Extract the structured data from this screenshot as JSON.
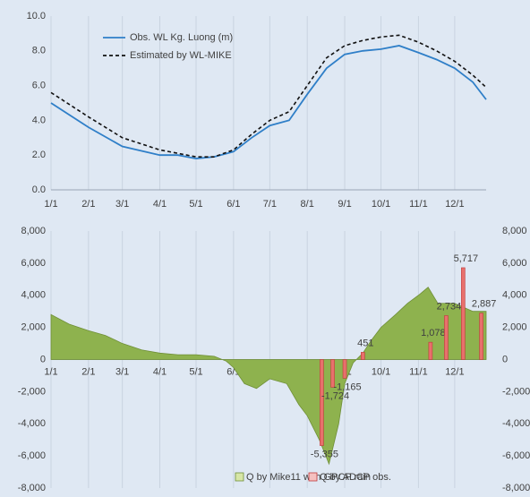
{
  "chart_data": [
    {
      "type": "line",
      "xlim": [
        0,
        360
      ],
      "xticks": [
        {
          "value": 0,
          "label": "1/1"
        },
        {
          "value": 31,
          "label": "2/1"
        },
        {
          "value": 59,
          "label": "3/1"
        },
        {
          "value": 90,
          "label": "4/1"
        },
        {
          "value": 120,
          "label": "5/1"
        },
        {
          "value": 151,
          "label": "6/1"
        },
        {
          "value": 181,
          "label": "7/1"
        },
        {
          "value": 212,
          "label": "8/1"
        },
        {
          "value": 243,
          "label": "9/1"
        },
        {
          "value": 273,
          "label": "10/1"
        },
        {
          "value": 304,
          "label": "11/1"
        },
        {
          "value": 334,
          "label": "12/1"
        }
      ],
      "ylim": [
        0,
        10
      ],
      "yticks": [
        {
          "value": 0,
          "label": "0.0"
        },
        {
          "value": 2,
          "label": "2.0"
        },
        {
          "value": 4,
          "label": "4.0"
        },
        {
          "value": 6,
          "label": "6.0"
        },
        {
          "value": 8,
          "label": "8.0"
        },
        {
          "value": 10,
          "label": "10.0"
        }
      ],
      "grid": true,
      "series": [
        {
          "name": "Obs. WL Kg. Luong (m)",
          "color": "#2f7fc8",
          "dash": false,
          "x": [
            0,
            31,
            59,
            90,
            105,
            120,
            135,
            151,
            166,
            181,
            197,
            212,
            228,
            243,
            258,
            273,
            288,
            304,
            319,
            334,
            349,
            360
          ],
          "values": [
            5.0,
            3.6,
            2.5,
            2.0,
            2.0,
            1.8,
            1.9,
            2.2,
            3.0,
            3.7,
            4.0,
            5.5,
            7.0,
            7.8,
            8.0,
            8.1,
            8.3,
            7.9,
            7.5,
            7.0,
            6.2,
            5.2
          ]
        },
        {
          "name": "Estimated by WL-MIKE",
          "color": "#111111",
          "dash": true,
          "x": [
            0,
            31,
            59,
            90,
            105,
            120,
            135,
            151,
            166,
            181,
            197,
            212,
            228,
            243,
            258,
            273,
            288,
            304,
            319,
            334,
            349,
            360
          ],
          "values": [
            5.6,
            4.2,
            3.0,
            2.3,
            2.1,
            1.9,
            1.9,
            2.3,
            3.2,
            4.0,
            4.5,
            6.0,
            7.6,
            8.3,
            8.6,
            8.8,
            8.9,
            8.5,
            8.0,
            7.4,
            6.6,
            5.9
          ]
        }
      ]
    },
    {
      "type": "combo",
      "xlim": [
        0,
        360
      ],
      "xticks": [
        {
          "value": 0,
          "label": "1/1"
        },
        {
          "value": 31,
          "label": "2/1"
        },
        {
          "value": 59,
          "label": "3/1"
        },
        {
          "value": 90,
          "label": "4/1"
        },
        {
          "value": 120,
          "label": "5/1"
        },
        {
          "value": 151,
          "label": "6/1"
        },
        {
          "value": 181,
          "label": "7/1"
        },
        {
          "value": 212,
          "label": "8/1"
        },
        {
          "value": 243,
          "label": "9/1"
        },
        {
          "value": 273,
          "label": "10/1"
        },
        {
          "value": 304,
          "label": "11/1"
        },
        {
          "value": 334,
          "label": "12/1"
        }
      ],
      "ylim": [
        -8000,
        8000
      ],
      "yticks": [
        {
          "value": -8000,
          "label": "-8,000"
        },
        {
          "value": -6000,
          "label": "-6,000"
        },
        {
          "value": -4000,
          "label": "-4,000"
        },
        {
          "value": -2000,
          "label": "-2,000"
        },
        0,
        {
          "value": 2000,
          "label": "2,000"
        },
        {
          "value": 4000,
          "label": "4,000"
        },
        {
          "value": 6000,
          "label": "6,000"
        },
        {
          "value": 8000,
          "label": "8,000"
        }
      ],
      "y2lim": [
        -8000,
        8000
      ],
      "y2ticks": [
        {
          "value": -8000,
          "label": "-8,000"
        },
        {
          "value": -6000,
          "label": "-6,000"
        },
        {
          "value": -4000,
          "label": "-4,000"
        },
        {
          "value": -2000,
          "label": "-2,000"
        },
        0,
        {
          "value": 2000,
          "label": "2,000"
        },
        {
          "value": 4000,
          "label": "4,000"
        },
        {
          "value": 6000,
          "label": "6,000"
        },
        {
          "value": 8000,
          "label": "8,000"
        }
      ],
      "grid": true,
      "series": [
        {
          "name": "Q by Mike11 with GPCP rain",
          "type": "area",
          "color": "#8eb24e",
          "x": [
            0,
            15,
            31,
            45,
            59,
            75,
            90,
            105,
            120,
            135,
            145,
            151,
            160,
            170,
            181,
            195,
            205,
            212,
            222,
            230,
            238,
            243,
            250,
            258,
            265,
            273,
            285,
            295,
            304,
            312,
            320,
            334,
            349,
            360
          ],
          "values": [
            2800,
            2200,
            1800,
            1500,
            1000,
            600,
            400,
            300,
            300,
            200,
            -100,
            -500,
            -1500,
            -1800,
            -1200,
            -1500,
            -2800,
            -3500,
            -5000,
            -6500,
            -4000,
            -1500,
            -200,
            400,
            1200,
            2000,
            2800,
            3500,
            4000,
            4500,
            3500,
            3500,
            3000,
            3000
          ]
        },
        {
          "name": "Q by ADCP obs.",
          "type": "bar",
          "color": "#e8706c",
          "x": [
            224,
            233,
            243,
            258,
            314,
            327,
            341,
            356
          ],
          "values": [
            -5355,
            -1724,
            -1165,
            451,
            1078,
            2734,
            5717,
            2887
          ],
          "value_labels": [
            "-5,355",
            "-1,724",
            "-1,165",
            "451",
            "1,078",
            "2,734",
            "5,717",
            "2,887"
          ]
        }
      ]
    }
  ]
}
